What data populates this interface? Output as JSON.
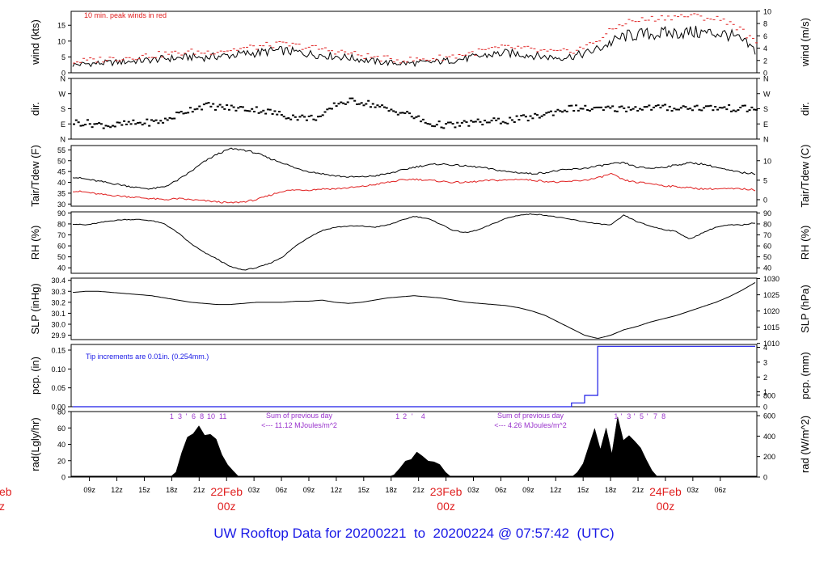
{
  "chart_data": {
    "type": "line",
    "title": "UW Rooftop Data for 20200221  to  20200224 @ 07:57:42  (UTC)",
    "time_axis": {
      "hour_ticks": [
        "09z",
        "12z",
        "15z",
        "18z",
        "21z",
        "00z",
        "03z",
        "06z",
        "09z",
        "12z",
        "15z",
        "18z",
        "21z",
        "00z",
        "03z",
        "06z",
        "09z",
        "12z",
        "15z",
        "18z",
        "21z",
        "00z",
        "03z",
        "06z"
      ],
      "day_labels": [
        {
          "date": "22Feb",
          "time": "00z"
        },
        {
          "date": "23Feb",
          "time": "00z"
        },
        {
          "date": "24Feb",
          "time": "00z"
        }
      ],
      "partial_left_date": "eb",
      "partial_left_time": "z"
    },
    "panels": [
      {
        "id": "wind",
        "ylabel": "wind (kts)",
        "ylabel_right": "wind (m/s)",
        "y_ticks": [
          "0",
          "5",
          "10",
          "15"
        ],
        "y_ticks_right": [
          "0",
          "2",
          "4",
          "6",
          "8",
          "10"
        ],
        "annotation": "10 min. peak winds in red",
        "series": [
          {
            "name": "wind",
            "color": "#000000",
            "style": "line",
            "values": [
              2.5,
              2.8,
              3.0,
              3.2,
              3.5,
              3.8,
              4.0,
              4.5,
              4.6,
              5.0,
              4.8,
              5.2,
              5.5,
              6.0,
              6.2,
              6.8,
              7.0,
              6.5,
              6.0,
              5.6,
              5.2,
              4.8,
              4.2,
              3.6,
              3.2,
              3.0,
              3.0,
              3.2,
              3.6,
              4.0,
              4.5,
              5.2,
              5.8,
              6.2,
              6.0,
              5.5,
              5.0,
              4.8,
              5.2,
              6.0,
              7.5,
              9.5,
              11.5,
              12.0,
              12.2,
              12.4,
              12.6,
              12.8,
              12.6,
              12.5,
              12.0,
              10.0,
              7.0
            ]
          },
          {
            "name": "peak",
            "color": "#e02020",
            "style": "dashes",
            "values": [
              3.5,
              3.8,
              4.2,
              4.5,
              4.8,
              5.2,
              5.5,
              6.0,
              6.2,
              6.6,
              6.4,
              7.0,
              7.2,
              7.8,
              8.2,
              8.8,
              9.0,
              8.5,
              8.0,
              7.4,
              6.8,
              6.2,
              5.4,
              4.8,
              4.3,
              4.0,
              4.1,
              4.3,
              4.8,
              5.3,
              6.0,
              6.8,
              7.6,
              8.0,
              7.8,
              7.2,
              6.6,
              6.4,
              7.0,
              8.2,
              10.5,
              13.5,
              16.0,
              16.5,
              17.0,
              17.5,
              17.8,
              18.0,
              17.5,
              17.0,
              16.0,
              13.0,
              9.0
            ]
          }
        ]
      },
      {
        "id": "dir",
        "ylabel": "dir.",
        "ylabel_right": "dir.",
        "y_ticks": [
          "N",
          "E",
          "S",
          "W",
          "N"
        ],
        "y_ticks_right": [
          "N",
          "E",
          "S",
          "W",
          "N"
        ],
        "series": [
          {
            "name": "direction (deg)",
            "color": "#000000",
            "style": "dots",
            "values": [
              100,
              95,
              85,
              80,
              90,
              95,
              100,
              110,
              150,
              180,
              200,
              190,
              185,
              180,
              175,
              160,
              140,
              130,
              125,
              135,
              210,
              225,
              220,
              200,
              170,
              160,
              130,
              90,
              85,
              80,
              95,
              100,
              105,
              110,
              120,
              130,
              150,
              170,
              185,
              180,
              175,
              180,
              182,
              185,
              187,
              186,
              184,
              188,
              186,
              185,
              183,
              180,
              178
            ]
          }
        ]
      },
      {
        "id": "temp",
        "ylabel": "Tair/Tdew (F)",
        "ylabel_right": "Tair/Tdew (C)",
        "y_ticks": [
          "30",
          "35",
          "40",
          "45",
          "50",
          "55"
        ],
        "y_ticks_right": [
          "0",
          "5",
          "10"
        ],
        "series": [
          {
            "name": "Tair",
            "color": "#000000",
            "style": "line",
            "values": [
              42.5,
              41.5,
              40.5,
              39.5,
              38.5,
              37.5,
              37.0,
              38.0,
              41.0,
              45.0,
              49.5,
              53.0,
              55.5,
              55.0,
              53.5,
              51.0,
              49.0,
              46.5,
              45.0,
              44.0,
              43.0,
              42.5,
              42.5,
              43.0,
              44.0,
              45.5,
              47.0,
              48.0,
              48.5,
              48.0,
              47.5,
              47.0,
              46.0,
              45.0,
              44.5,
              44.0,
              44.5,
              45.5,
              46.0,
              46.5,
              47.5,
              48.5,
              49.0,
              47.0,
              46.5,
              47.0,
              48.0,
              49.0,
              48.5,
              47.0,
              45.5,
              44.5,
              44.0
            ]
          },
          {
            "name": "Tdew",
            "color": "#e02020",
            "style": "line",
            "values": [
              36.0,
              35.5,
              34.5,
              34.0,
              33.5,
              33.0,
              32.5,
              32.0,
              32.5,
              32.0,
              31.5,
              31.0,
              30.5,
              31.0,
              32.0,
              34.0,
              36.0,
              36.5,
              36.5,
              37.0,
              37.0,
              37.5,
              38.0,
              39.0,
              40.0,
              41.0,
              41.5,
              41.0,
              40.5,
              40.0,
              40.0,
              40.5,
              41.0,
              41.0,
              41.5,
              41.0,
              40.5,
              40.0,
              40.5,
              41.0,
              42.0,
              44.0,
              41.0,
              40.0,
              39.5,
              38.5,
              38.0,
              37.5,
              37.0,
              37.0,
              37.0,
              37.0,
              36.5
            ]
          }
        ]
      },
      {
        "id": "rh",
        "ylabel": "RH (%)",
        "ylabel_right": "RH (%)",
        "y_ticks": [
          "40",
          "50",
          "60",
          "70",
          "80",
          "90"
        ],
        "y_ticks_right": [
          "40",
          "50",
          "60",
          "70",
          "80",
          "90"
        ],
        "series": [
          {
            "name": "RH",
            "color": "#000000",
            "style": "line",
            "values": [
              80,
              79,
              81,
              83,
              84,
              84,
              83,
              80,
              72,
              62,
              54,
              48,
              41,
              38,
              40,
              44,
              50,
              60,
              68,
              74,
              77,
              78,
              78,
              77,
              79,
              83,
              87,
              85,
              80,
              74,
              72,
              75,
              80,
              85,
              88,
              89,
              88,
              86,
              84,
              82,
              80,
              79,
              88,
              82,
              78,
              75,
              73,
              66,
              72,
              77,
              79,
              79,
              81
            ]
          }
        ]
      },
      {
        "id": "slp",
        "ylabel": "SLP (inHg)",
        "ylabel_right": "SLP (hPa)",
        "y_ticks": [
          "29.9",
          "30.0",
          "30.1",
          "30.2",
          "30.3",
          "30.4"
        ],
        "y_ticks_right": [
          "1010",
          "1015",
          "1020",
          "1025",
          "1030"
        ],
        "series": [
          {
            "name": "SLP",
            "color": "#000000",
            "style": "line",
            "values": [
              30.29,
              30.3,
              30.3,
              30.29,
              30.28,
              30.27,
              30.26,
              30.24,
              30.22,
              30.2,
              30.19,
              30.18,
              30.18,
              30.19,
              30.2,
              30.2,
              30.2,
              30.21,
              30.21,
              30.22,
              30.2,
              30.19,
              30.2,
              30.22,
              30.24,
              30.25,
              30.26,
              30.25,
              30.24,
              30.22,
              30.2,
              30.19,
              30.18,
              30.17,
              30.15,
              30.12,
              30.08,
              30.02,
              29.96,
              29.9,
              29.87,
              29.9,
              29.95,
              29.98,
              30.02,
              30.05,
              30.08,
              30.12,
              30.16,
              30.2,
              30.25,
              30.31,
              30.38
            ]
          }
        ]
      },
      {
        "id": "pcp",
        "ylabel": "pcp. (in)",
        "ylabel_right": "pcp. (mm)",
        "y_ticks": [
          "0.00",
          "0.05",
          "0.10",
          "0.15"
        ],
        "y_ticks_right": [
          "0",
          "1",
          "2",
          "3",
          "4"
        ],
        "annotation": "Tip increments are 0.01in. (0.254mm.)",
        "series": [
          {
            "name": "cumulative precipitation",
            "color": "#1a1ae6",
            "style": "step",
            "values": [
              0,
              0,
              0,
              0,
              0,
              0,
              0,
              0,
              0,
              0,
              0,
              0,
              0,
              0,
              0,
              0,
              0,
              0,
              0,
              0,
              0,
              0,
              0,
              0,
              0,
              0,
              0,
              0,
              0,
              0,
              0,
              0,
              0,
              0,
              0,
              0,
              0,
              0,
              0.01,
              0.03,
              0.16,
              0.16,
              0.16,
              0.16,
              0.16,
              0.16,
              0.16,
              0.16,
              0.16,
              0.16,
              0.16,
              0.16,
              0.16
            ]
          }
        ]
      },
      {
        "id": "rad",
        "ylabel": "rad(Lgly/hr)",
        "ylabel_right": "rad (W/m^2)",
        "y_ticks": [
          "0",
          "20",
          "40",
          "60",
          "80"
        ],
        "y_ticks_right": [
          "0",
          "200",
          "400",
          "600",
          "800"
        ],
        "annotations": [
          {
            "top": "Sum of previous day",
            "bottom": "<--- 11.12 MJoules/m^2"
          },
          {
            "top": "Sum of previous day",
            "bottom": "<--- 4.26 MJoules/m^2"
          }
        ],
        "marker_groups": [
          {
            "labels": [
              "1",
              "3",
              "'",
              "6",
              "8",
              "10",
              "11"
            ],
            "hours": [
              18.0,
              18.9,
              19.6,
              20.4,
              21.3,
              22.3,
              23.6
            ]
          },
          {
            "labels": [
              "1",
              "2",
              "'",
              "4"
            ],
            "hours": [
              42.7,
              43.5,
              44.3,
              45.5
            ]
          },
          {
            "labels": [
              "1",
              "'",
              "3",
              "'",
              "5",
              "'",
              "7",
              "8"
            ],
            "hours": [
              66.6,
              67.2,
              68.0,
              68.6,
              69.4,
              70.0,
              70.9,
              71.8
            ]
          }
        ],
        "series": [
          {
            "name": "radiation",
            "color": "#000000",
            "style": "area",
            "values": [
              0,
              0,
              0,
              0,
              0,
              0,
              0,
              0,
              0,
              0,
              0,
              0,
              0,
              0,
              0,
              0,
              0,
              0,
              8,
              25,
              40,
              50,
              55,
              48,
              46,
              40,
              30,
              18,
              6,
              0,
              0,
              0,
              0,
              0,
              0,
              0,
              0,
              0,
              0,
              0,
              0,
              0,
              0,
              0,
              0,
              0,
              0,
              0,
              0,
              0,
              0,
              0,
              0,
              0,
              0,
              0,
              3,
              10,
              18,
              28,
              35,
              30,
              26,
              22,
              14,
              5,
              0,
              0,
              0,
              0,
              0,
              0,
              0,
              0,
              0,
              0,
              0,
              0,
              0,
              0,
              0,
              0,
              0,
              0,
              0,
              0,
              0,
              0,
              5,
              20,
              40,
              60,
              30,
              70,
              35,
              75,
              45,
              60,
              40,
              30,
              20,
              8,
              0,
              0,
              0,
              0,
              0,
              0,
              0,
              0,
              0,
              0,
              0,
              0,
              0,
              0,
              0,
              0,
              0,
              0
            ]
          }
        ]
      }
    ]
  }
}
